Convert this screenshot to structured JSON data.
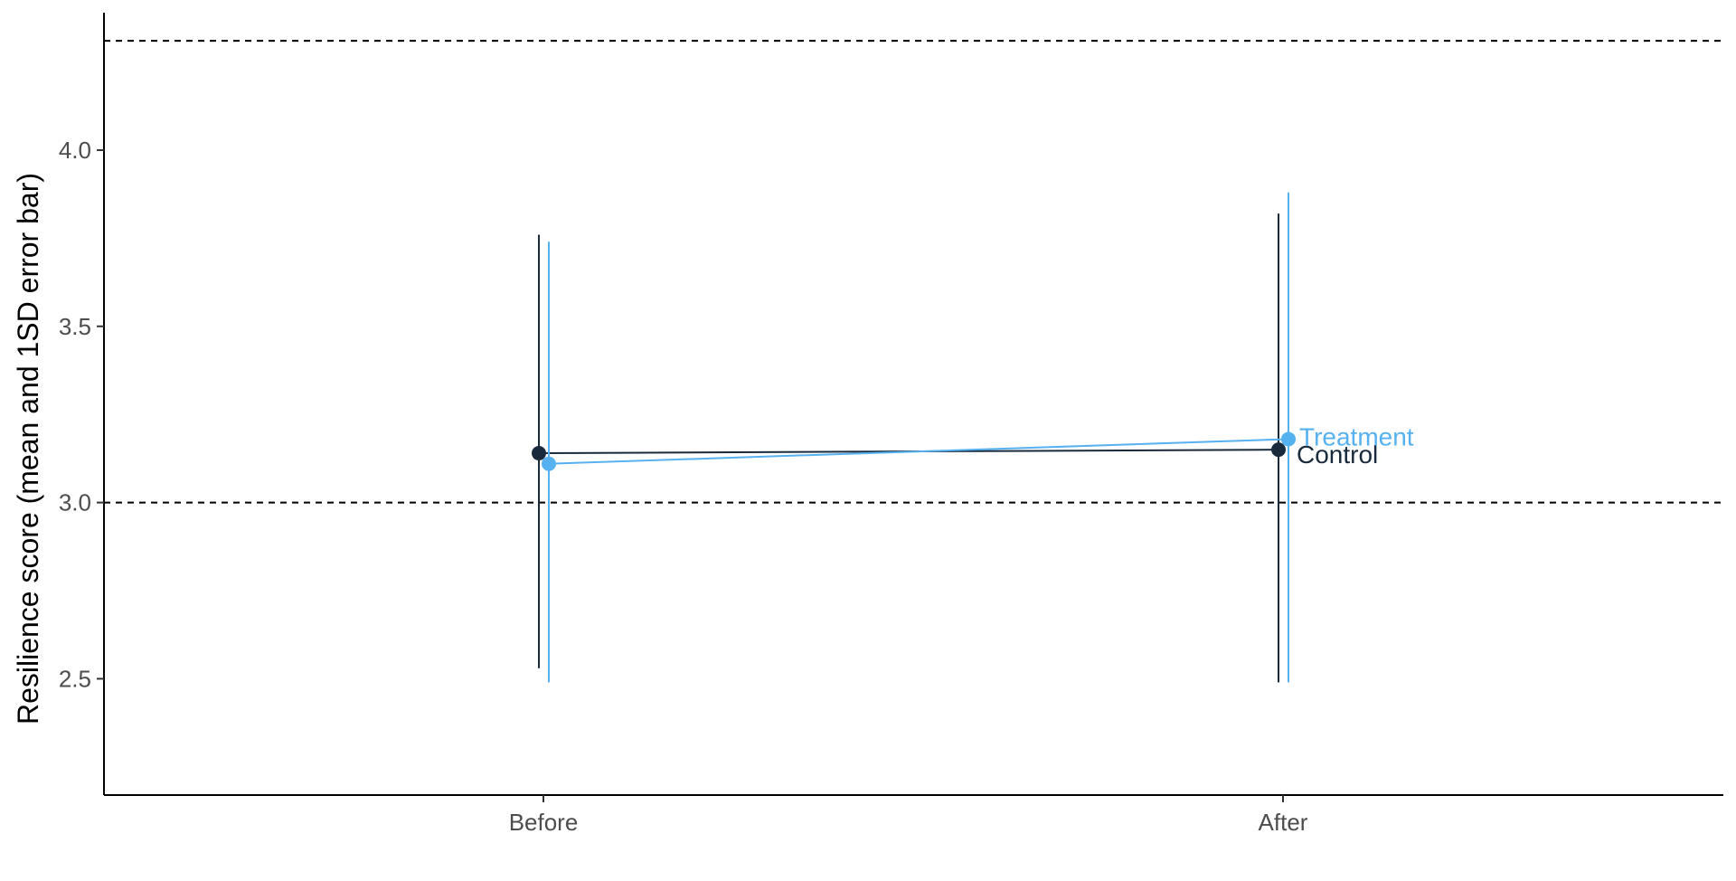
{
  "chart_data": {
    "type": "line",
    "title": "",
    "xlabel": "",
    "ylabel": "Resilience score (mean and 1SD error bar)",
    "categories": [
      "Before",
      "After"
    ],
    "y_ticks": [
      2.5,
      3.0,
      3.5,
      4.0
    ],
    "y_tick_labels": [
      "2.5",
      "3.0",
      "3.5",
      "4.0"
    ],
    "ylim": [
      2.17,
      4.39
    ],
    "reference_lines": [
      3.0,
      4.31
    ],
    "reference_line_style": "dashed",
    "grid": false,
    "legend": "direct labels at line ends",
    "series": [
      {
        "name": "Control",
        "color": "#1a2a3d",
        "values": [
          3.14,
          3.15
        ],
        "lower": [
          2.53,
          2.49
        ],
        "upper": [
          3.76,
          3.82
        ]
      },
      {
        "name": "Treatment",
        "color": "#56b1f0",
        "values": [
          3.11,
          3.18
        ],
        "lower": [
          2.49,
          2.49
        ],
        "upper": [
          3.74,
          3.88
        ]
      }
    ]
  }
}
